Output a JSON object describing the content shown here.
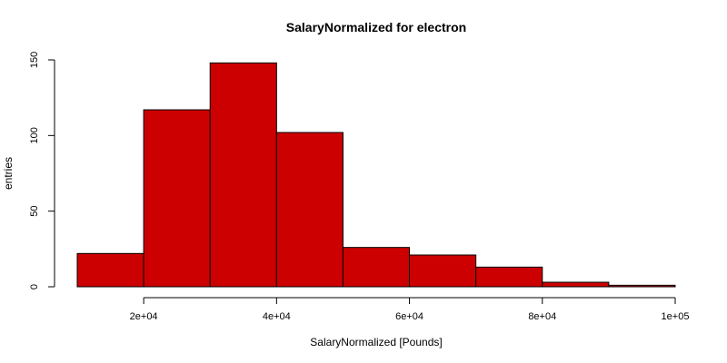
{
  "chart_data": {
    "type": "bar",
    "title": "SalaryNormalized for electron",
    "xlabel": "SalaryNormalized [Pounds]",
    "ylabel": "entries",
    "bin_edges": [
      10000,
      20000,
      30000,
      40000,
      50000,
      60000,
      70000,
      80000,
      90000,
      100000
    ],
    "values": [
      22,
      117,
      148,
      102,
      26,
      21,
      13,
      3,
      1
    ],
    "xlim": [
      10000,
      100000
    ],
    "ylim": [
      0,
      150
    ],
    "x_ticks": [
      20000,
      40000,
      60000,
      80000,
      100000
    ],
    "x_tick_labels": [
      "2e+04",
      "4e+04",
      "6e+04",
      "8e+04",
      "1e+05"
    ],
    "y_ticks": [
      0,
      50,
      100,
      150
    ],
    "y_tick_labels": [
      "0",
      "50",
      "100",
      "150"
    ],
    "bar_color": "#cc0000",
    "grid": false
  }
}
